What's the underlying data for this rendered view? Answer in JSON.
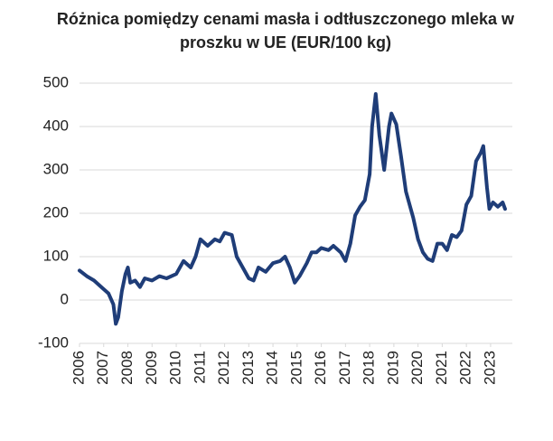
{
  "chart_data": {
    "type": "line",
    "title": "Różnica pomiędzy cenami masła i odtłuszczonego mleka w proszku w UE (EUR/100 kg)",
    "xlim": [
      2006,
      2023.9
    ],
    "xticks": [
      2006,
      2007,
      2008,
      2009,
      2010,
      2011,
      2012,
      2013,
      2014,
      2015,
      2016,
      2017,
      2018,
      2019,
      2020,
      2021,
      2022,
      2023
    ],
    "ylim": [
      -100,
      500
    ],
    "yticks": [
      -100,
      0,
      100,
      200,
      300,
      400,
      500
    ],
    "grid": true,
    "series": [
      {
        "name": "Różnica",
        "color": "#1f3d78",
        "x": [
          2006.0,
          2006.3,
          2006.6,
          2006.9,
          2007.2,
          2007.4,
          2007.5,
          2007.6,
          2007.75,
          2007.9,
          2008.0,
          2008.1,
          2008.3,
          2008.5,
          2008.7,
          2009.0,
          2009.3,
          2009.6,
          2010.0,
          2010.3,
          2010.6,
          2010.8,
          2011.0,
          2011.3,
          2011.6,
          2011.8,
          2012.0,
          2012.3,
          2012.5,
          2012.8,
          2013.0,
          2013.2,
          2013.4,
          2013.7,
          2014.0,
          2014.3,
          2014.5,
          2014.7,
          2014.9,
          2015.1,
          2015.4,
          2015.6,
          2015.8,
          2016.0,
          2016.3,
          2016.5,
          2016.8,
          2017.0,
          2017.2,
          2017.4,
          2017.6,
          2017.8,
          2018.0,
          2018.1,
          2018.25,
          2018.4,
          2018.6,
          2018.8,
          2018.9,
          2019.1,
          2019.3,
          2019.5,
          2019.8,
          2020.0,
          2020.2,
          2020.4,
          2020.6,
          2020.8,
          2021.0,
          2021.2,
          2021.4,
          2021.6,
          2021.8,
          2022.0,
          2022.2,
          2022.4,
          2022.6,
          2022.7,
          2022.85,
          2022.95,
          2023.1,
          2023.3,
          2023.5,
          2023.6
        ],
        "values": [
          68,
          55,
          45,
          30,
          15,
          -10,
          -55,
          -40,
          20,
          60,
          75,
          40,
          45,
          30,
          50,
          45,
          55,
          50,
          60,
          90,
          75,
          100,
          140,
          125,
          140,
          135,
          155,
          150,
          100,
          70,
          50,
          45,
          75,
          65,
          85,
          90,
          100,
          75,
          40,
          55,
          85,
          110,
          110,
          120,
          115,
          125,
          110,
          90,
          130,
          195,
          215,
          230,
          290,
          400,
          475,
          380,
          300,
          400,
          430,
          405,
          330,
          250,
          190,
          140,
          110,
          95,
          90,
          130,
          130,
          115,
          150,
          145,
          160,
          220,
          240,
          320,
          340,
          355,
          260,
          210,
          225,
          215,
          225,
          210
        ]
      }
    ]
  }
}
